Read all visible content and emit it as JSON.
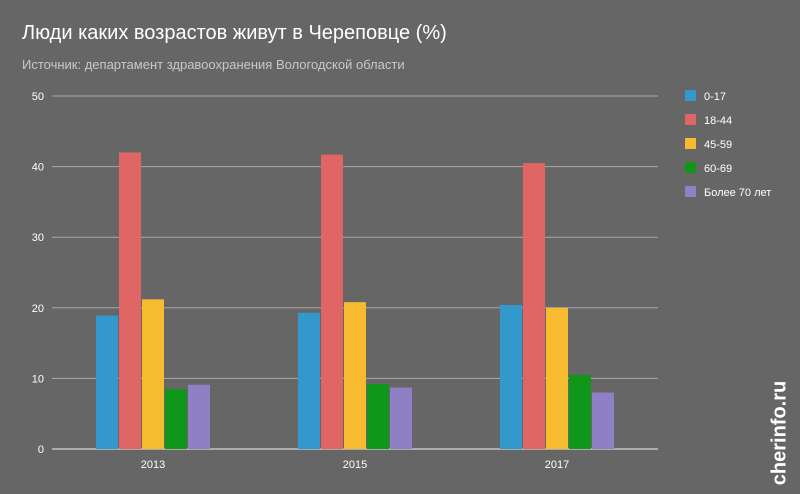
{
  "title": "Люди каких возрастов живут в Череповце (%)",
  "subtitle": "Источник: департамент здравоохранения Вологодской области",
  "watermark": "cherinfo.ru",
  "chart_data": {
    "type": "bar",
    "title": "Люди каких возрастов живут в Череповце (%)",
    "subtitle": "Источник: департамент здравоохранения Вологодской области",
    "categories": [
      "2013",
      "2015",
      "2017"
    ],
    "series": [
      {
        "name": "0-17",
        "color": "#3399cc",
        "values": [
          18.9,
          19.3,
          20.4
        ]
      },
      {
        "name": "18-44",
        "color": "#e06666",
        "values": [
          42.0,
          41.7,
          40.5
        ]
      },
      {
        "name": "45-59",
        "color": "#f6bb2e",
        "values": [
          21.2,
          20.8,
          20.0
        ]
      },
      {
        "name": "60-69",
        "color": "#109618",
        "values": [
          8.5,
          9.2,
          10.5
        ]
      },
      {
        "name": "Более 70 лет",
        "color": "#8f7fc5",
        "values": [
          9.1,
          8.7,
          8.0
        ]
      }
    ],
    "yticks": [
      0,
      10,
      20,
      30,
      40,
      50
    ],
    "ylim": [
      0,
      50
    ],
    "grid": true,
    "legend": "right",
    "xlabel": "",
    "ylabel": ""
  }
}
